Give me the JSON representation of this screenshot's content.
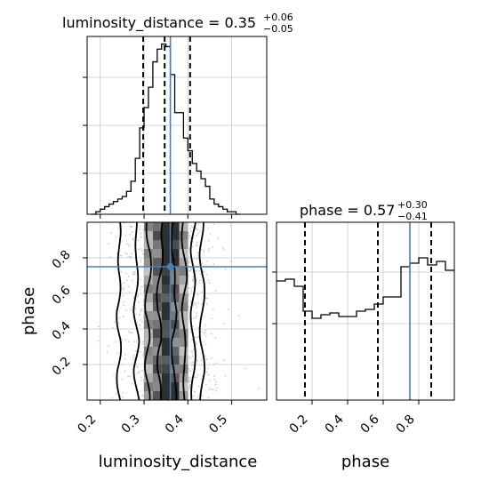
{
  "colors": {
    "truth": "#4682b4",
    "hist": "#000000",
    "grid": "#c8c8c8",
    "scatter": "#bdbdbd"
  },
  "chart_data": [
    {
      "type": "histogram",
      "panel": "luminosity_distance-marginal",
      "title": {
        "param": "luminosity_distance",
        "eq": " = ",
        "value": "0.35",
        "plus": "+0.06",
        "minus": "−0.05"
      },
      "xlim": [
        0.17,
        0.58
      ],
      "ylim": [
        0,
        70
      ],
      "bin_edges": [
        0.18,
        0.19,
        0.2,
        0.21,
        0.22,
        0.23,
        0.24,
        0.25,
        0.26,
        0.27,
        0.28,
        0.29,
        0.3,
        0.31,
        0.32,
        0.33,
        0.34,
        0.35,
        0.36,
        0.37,
        0.38,
        0.39,
        0.4,
        0.41,
        0.42,
        0.43,
        0.44,
        0.45,
        0.46,
        0.47,
        0.48,
        0.49,
        0.5,
        0.51,
        0.52
      ],
      "counts": [
        0,
        1,
        2,
        3,
        4,
        5,
        6,
        7,
        9,
        13,
        22,
        34,
        42,
        50,
        60,
        65,
        67,
        66,
        55,
        40,
        40,
        30,
        25,
        20,
        17,
        14,
        11,
        6,
        4,
        3,
        2,
        1,
        1,
        0
      ],
      "quantiles": [
        0.298,
        0.347,
        0.405
      ],
      "truth": 0.36,
      "x_ticks": [
        "0.2",
        "0.3",
        "0.4",
        "0.5"
      ],
      "grid": true
    },
    {
      "type": "histogram",
      "panel": "phase-marginal",
      "title": {
        "param": "phase",
        "eq": " = ",
        "value": "0.57",
        "plus": "+0.30",
        "minus": "−0.41"
      },
      "xlim": [
        0.0,
        1.0
      ],
      "ylim": [
        0,
        100
      ],
      "bin_edges": [
        0.0,
        0.05,
        0.1,
        0.15,
        0.2,
        0.25,
        0.3,
        0.35,
        0.4,
        0.45,
        0.5,
        0.55,
        0.6,
        0.65,
        0.7,
        0.75,
        0.8,
        0.85,
        0.9,
        0.95,
        1.0
      ],
      "counts": [
        67,
        68,
        64,
        50,
        46,
        48,
        49,
        47,
        47,
        50,
        51,
        54,
        58,
        58,
        75,
        77,
        80,
        76,
        78,
        73
      ],
      "quantiles": [
        0.16,
        0.57,
        0.87
      ],
      "truth": 0.75,
      "x_ticks": [
        "0.2",
        "0.4",
        "0.6",
        "0.8"
      ],
      "x_label": "phase",
      "grid": true
    },
    {
      "type": "contour2d",
      "panel": "joint",
      "xlim": [
        0.17,
        0.58
      ],
      "ylim": [
        0.0,
        1.0
      ],
      "x_label": "luminosity_distance",
      "y_label": "phase",
      "x_ticks": [
        "0.2",
        "0.3",
        "0.4",
        "0.5"
      ],
      "y_ticks": [
        "0.2",
        "0.4",
        "0.6",
        "0.8"
      ],
      "truth": {
        "x": 0.36,
        "y": 0.75
      },
      "grid": true,
      "contour_levels": [
        {
          "left": [
            0.338,
            0.33,
            0.34,
            0.33,
            0.335,
            0.34,
            0.345
          ],
          "right": [
            0.37,
            0.372,
            0.36,
            0.375,
            0.372,
            0.36,
            0.37
          ]
        },
        {
          "left": [
            0.31,
            0.305,
            0.31,
            0.305,
            0.31,
            0.315,
            0.305
          ],
          "right": [
            0.39,
            0.395,
            0.39,
            0.39,
            0.395,
            0.39,
            0.39
          ]
        },
        {
          "left": [
            0.285,
            0.28,
            0.285,
            0.28,
            0.282,
            0.285,
            0.28
          ],
          "right": [
            0.41,
            0.415,
            0.412,
            0.41,
            0.413,
            0.41,
            0.415
          ]
        },
        {
          "left": [
            0.245,
            0.24,
            0.245,
            0.24,
            0.243,
            0.245,
            0.242
          ],
          "right": [
            0.432,
            0.435,
            0.43,
            0.433,
            0.435,
            0.43,
            0.432
          ]
        }
      ]
    }
  ]
}
